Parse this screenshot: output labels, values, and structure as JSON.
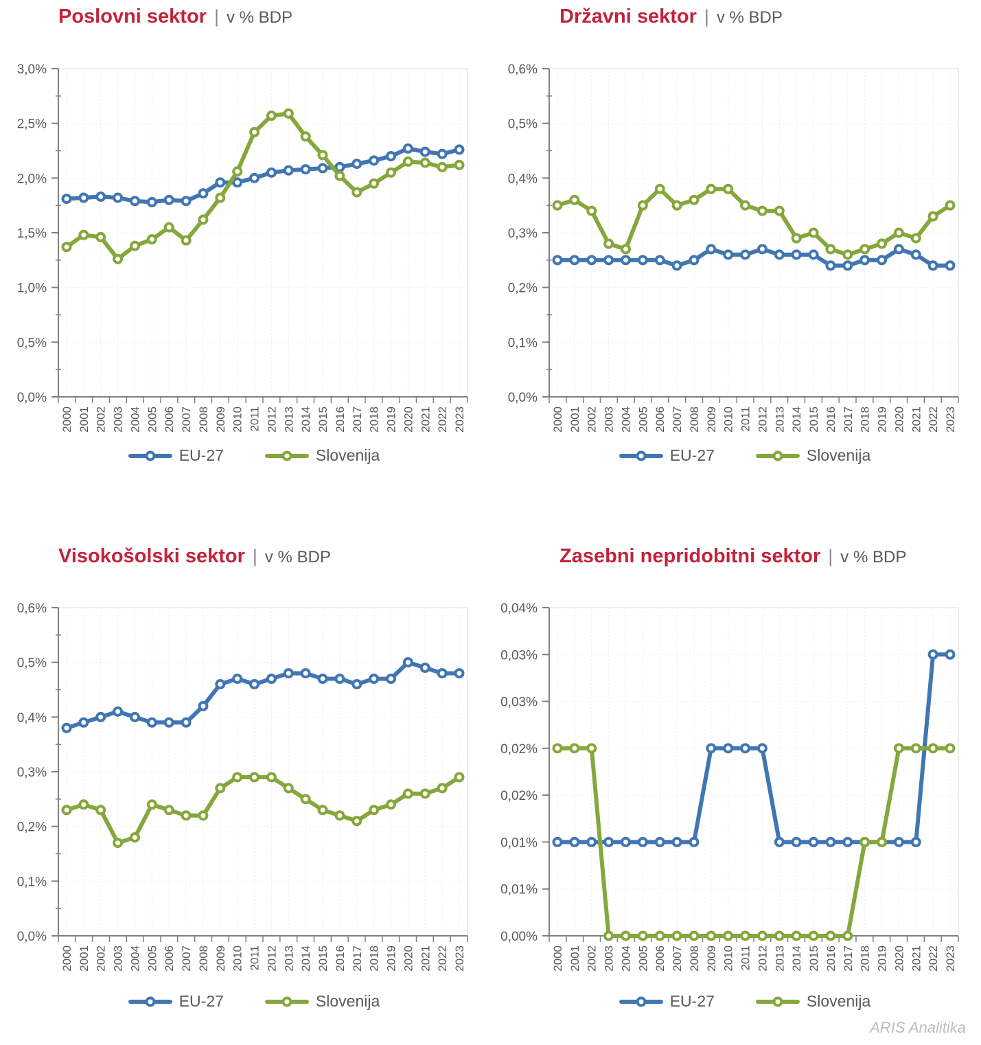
{
  "footer": "ARIS Analitika",
  "title_separator": "|",
  "colors": {
    "eu": "#4176b2",
    "si": "#85a73b",
    "title_accent": "#c2233b",
    "subtitle_gray": "#595959",
    "axis_gray": "#808080"
  },
  "chart_data": [
    {
      "type": "line",
      "title": "Poslovni sektor",
      "subtitle": "v % BDP",
      "categories": [
        "2000",
        "2001",
        "2002",
        "2003",
        "2004",
        "2005",
        "2006",
        "2007",
        "2008",
        "2009",
        "2010",
        "2011",
        "2012",
        "2013",
        "2014",
        "2015",
        "2016",
        "2017",
        "2018",
        "2019",
        "2020",
        "2021",
        "2022",
        "2023"
      ],
      "ylim": [
        0,
        3.0
      ],
      "y_minor": 0.25,
      "grid": true,
      "legend_position": "bottom",
      "yticks": [
        {
          "v": 0.0,
          "label": "0,0%"
        },
        {
          "v": 0.5,
          "label": "0,5%"
        },
        {
          "v": 1.0,
          "label": "1,0%"
        },
        {
          "v": 1.5,
          "label": "1,5%"
        },
        {
          "v": 2.0,
          "label": "2,0%"
        },
        {
          "v": 2.5,
          "label": "2,5%"
        },
        {
          "v": 3.0,
          "label": "3,0%"
        }
      ],
      "series": [
        {
          "name": "EU-27",
          "color_key": "eu",
          "values": [
            1.81,
            1.82,
            1.83,
            1.82,
            1.79,
            1.78,
            1.8,
            1.79,
            1.86,
            1.96,
            1.96,
            2.0,
            2.05,
            2.07,
            2.08,
            2.09,
            2.1,
            2.13,
            2.16,
            2.2,
            2.27,
            2.24,
            2.22,
            2.26
          ]
        },
        {
          "name": "Slovenija",
          "color_key": "si",
          "values": [
            1.37,
            1.48,
            1.46,
            1.26,
            1.38,
            1.44,
            1.55,
            1.43,
            1.62,
            1.82,
            2.06,
            2.42,
            2.57,
            2.59,
            2.38,
            2.21,
            2.02,
            1.87,
            1.95,
            2.05,
            2.15,
            2.14,
            2.1,
            2.12
          ]
        }
      ]
    },
    {
      "type": "line",
      "title": "Državni sektor",
      "subtitle": "v % BDP",
      "categories": [
        "2000",
        "2001",
        "2002",
        "2003",
        "2004",
        "2005",
        "2006",
        "2007",
        "2008",
        "2009",
        "2010",
        "2011",
        "2012",
        "2013",
        "2014",
        "2015",
        "2016",
        "2017",
        "2018",
        "2019",
        "2020",
        "2021",
        "2022",
        "2023"
      ],
      "ylim": [
        0,
        0.6
      ],
      "y_minor": 0.05,
      "grid": true,
      "legend_position": "bottom",
      "yticks": [
        {
          "v": 0.0,
          "label": "0,0%"
        },
        {
          "v": 0.1,
          "label": "0,1%"
        },
        {
          "v": 0.2,
          "label": "0,2%"
        },
        {
          "v": 0.3,
          "label": "0,3%"
        },
        {
          "v": 0.4,
          "label": "0,4%"
        },
        {
          "v": 0.5,
          "label": "0,5%"
        },
        {
          "v": 0.6,
          "label": "0,6%"
        }
      ],
      "series": [
        {
          "name": "EU-27",
          "color_key": "eu",
          "values": [
            0.25,
            0.25,
            0.25,
            0.25,
            0.25,
            0.25,
            0.25,
            0.24,
            0.25,
            0.27,
            0.26,
            0.26,
            0.27,
            0.26,
            0.26,
            0.26,
            0.24,
            0.24,
            0.25,
            0.25,
            0.27,
            0.26,
            0.24,
            0.24
          ]
        },
        {
          "name": "Slovenija",
          "color_key": "si",
          "values": [
            0.35,
            0.36,
            0.34,
            0.28,
            0.27,
            0.35,
            0.38,
            0.35,
            0.36,
            0.38,
            0.38,
            0.35,
            0.34,
            0.34,
            0.29,
            0.3,
            0.27,
            0.26,
            0.27,
            0.28,
            0.3,
            0.29,
            0.33,
            0.35
          ]
        }
      ]
    },
    {
      "type": "line",
      "title": "Visokošolski sektor",
      "subtitle": "v % BDP",
      "categories": [
        "2000",
        "2001",
        "2002",
        "2003",
        "2004",
        "2005",
        "2006",
        "2007",
        "2008",
        "2009",
        "2010",
        "2011",
        "2012",
        "2013",
        "2014",
        "2015",
        "2016",
        "2017",
        "2018",
        "2019",
        "2020",
        "2021",
        "2022",
        "2023"
      ],
      "ylim": [
        0,
        0.6
      ],
      "y_minor": 0.05,
      "grid": true,
      "legend_position": "bottom",
      "yticks": [
        {
          "v": 0.0,
          "label": "0,0%"
        },
        {
          "v": 0.1,
          "label": "0,1%"
        },
        {
          "v": 0.2,
          "label": "0,2%"
        },
        {
          "v": 0.3,
          "label": "0,3%"
        },
        {
          "v": 0.4,
          "label": "0,4%"
        },
        {
          "v": 0.5,
          "label": "0,5%"
        },
        {
          "v": 0.6,
          "label": "0,6%"
        }
      ],
      "series": [
        {
          "name": "EU-27",
          "color_key": "eu",
          "values": [
            0.38,
            0.39,
            0.4,
            0.41,
            0.4,
            0.39,
            0.39,
            0.39,
            0.42,
            0.46,
            0.47,
            0.46,
            0.47,
            0.48,
            0.48,
            0.47,
            0.47,
            0.46,
            0.47,
            0.47,
            0.5,
            0.49,
            0.48,
            0.48
          ]
        },
        {
          "name": "Slovenija",
          "color_key": "si",
          "values": [
            0.23,
            0.24,
            0.23,
            0.17,
            0.18,
            0.24,
            0.23,
            0.22,
            0.22,
            0.27,
            0.29,
            0.29,
            0.29,
            0.27,
            0.25,
            0.23,
            0.22,
            0.21,
            0.23,
            0.24,
            0.26,
            0.26,
            0.27,
            0.29
          ]
        }
      ]
    },
    {
      "type": "line",
      "title": "Zasebni nepridobitni sektor",
      "subtitle": "v % BDP",
      "categories": [
        "2000",
        "2001",
        "2002",
        "2003",
        "2004",
        "2005",
        "2006",
        "2007",
        "2008",
        "2009",
        "2010",
        "2011",
        "2012",
        "2013",
        "2014",
        "2015",
        "2016",
        "2017",
        "2018",
        "2019",
        "2020",
        "2021",
        "2022",
        "2023"
      ],
      "ylim": [
        0,
        0.035
      ],
      "grid": true,
      "legend_position": "bottom",
      "yticks": [
        {
          "v": 0.0,
          "label": "0,00%"
        },
        {
          "v": 0.005,
          "label": "0,01%"
        },
        {
          "v": 0.01,
          "label": "0,01%"
        },
        {
          "v": 0.015,
          "label": "0,02%"
        },
        {
          "v": 0.02,
          "label": "0,02%"
        },
        {
          "v": 0.025,
          "label": "0,03%"
        },
        {
          "v": 0.03,
          "label": "0,03%"
        },
        {
          "v": 0.035,
          "label": "0,04%"
        }
      ],
      "series": [
        {
          "name": "EU-27",
          "color_key": "eu",
          "values": [
            0.01,
            0.01,
            0.01,
            0.01,
            0.01,
            0.01,
            0.01,
            0.01,
            0.01,
            0.02,
            0.02,
            0.02,
            0.02,
            0.01,
            0.01,
            0.01,
            0.01,
            0.01,
            0.01,
            0.01,
            0.01,
            0.01,
            0.03,
            0.03
          ]
        },
        {
          "name": "Slovenija",
          "color_key": "si",
          "values": [
            0.02,
            0.02,
            0.02,
            0.0,
            0.0,
            0.0,
            0.0,
            0.0,
            0.0,
            0.0,
            0.0,
            0.0,
            0.0,
            0.0,
            0.0,
            0.0,
            0.0,
            0.0,
            0.01,
            0.01,
            0.02,
            0.02,
            0.02,
            0.02
          ]
        }
      ]
    }
  ]
}
